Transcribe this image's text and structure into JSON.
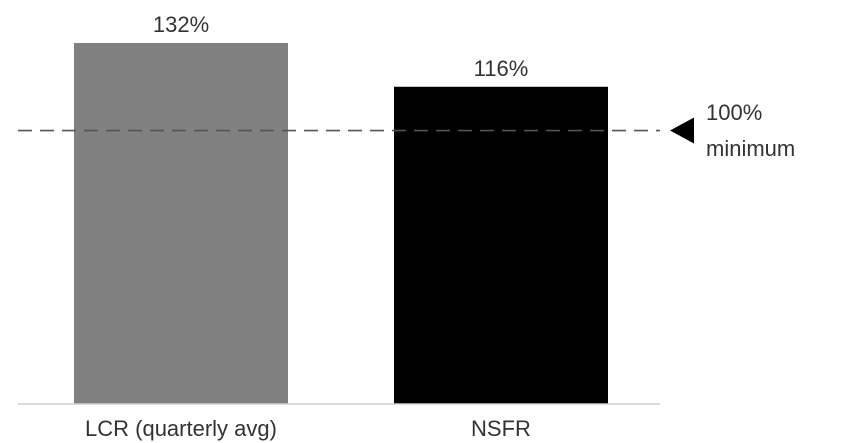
{
  "chart_data": {
    "type": "bar",
    "categories": [
      "LCR (quarterly avg)",
      "NSFR"
    ],
    "values": [
      132,
      116
    ],
    "data_labels": [
      "132%",
      "116%"
    ],
    "colors": [
      "#808080",
      "#000000"
    ],
    "ylim": [
      0,
      140
    ],
    "grid": false,
    "reference_line": {
      "value": 100,
      "label_line1": "100%",
      "label_line2": "minimum",
      "style": "dashed",
      "color": "#555555",
      "marker": "left-pointing-triangle"
    }
  }
}
